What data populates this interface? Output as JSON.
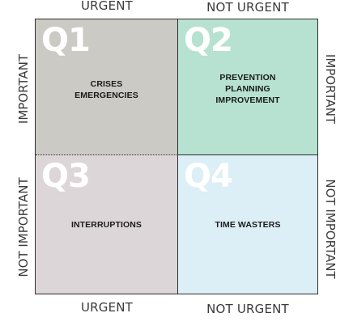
{
  "axes": {
    "top_left": "URGENT",
    "top_right": "NOT URGENT",
    "bottom_left": "URGENT",
    "bottom_right": "NOT URGENT",
    "left_top": "IMPORTANT",
    "left_bottom": "NOT IMPORTANT",
    "right_top": "IMPORTANT",
    "right_bottom": "NOT IMPORTANT"
  },
  "quadrants": {
    "q1": {
      "label": "Q1",
      "lines": [
        "CRISES",
        "EMERGENCIES"
      ],
      "color": "#cccac5"
    },
    "q2": {
      "label": "Q2",
      "lines": [
        "PREVENTION",
        "PLANNING",
        "IMPROVEMENT"
      ],
      "color": "#b7e2d1"
    },
    "q3": {
      "label": "Q3",
      "lines": [
        "INTERRUPTIONS"
      ],
      "color": "#ddd6d9"
    },
    "q4": {
      "label": "Q4",
      "lines": [
        "TIME WASTERS"
      ],
      "color": "#dceef6"
    }
  }
}
